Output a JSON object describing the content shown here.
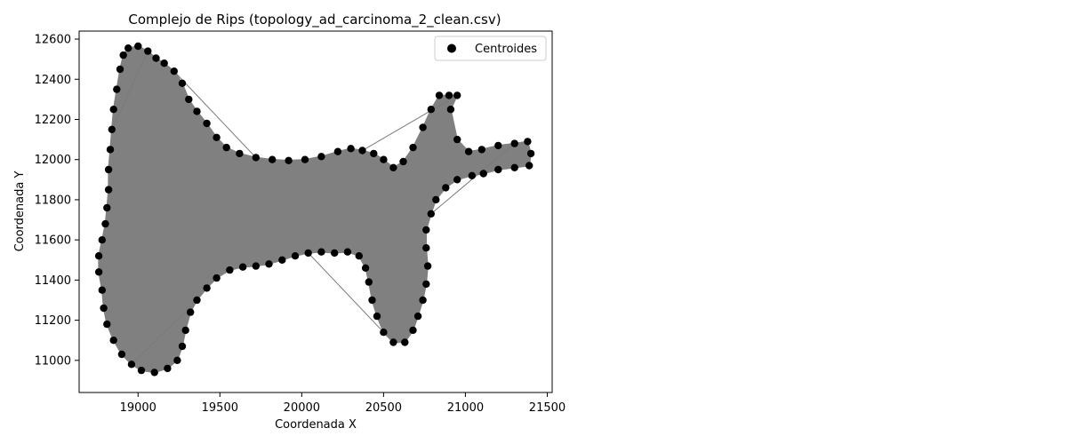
{
  "chart_data": {
    "type": "scatter",
    "title": "Complejo de Rips (topology_ad_carcinoma_2_clean.csv)",
    "xlabel": "Coordenada X",
    "ylabel": "Coordenada Y",
    "xlim": [
      18640,
      21530
    ],
    "ylim": [
      10840,
      12640
    ],
    "xticks": [
      19000,
      19500,
      20000,
      20500,
      21000,
      21500
    ],
    "yticks": [
      11000,
      11200,
      11400,
      11600,
      11800,
      12000,
      12200,
      12400,
      12600
    ],
    "grid": false,
    "legend": {
      "placement": "top-right",
      "entries": [
        "Centroides"
      ]
    },
    "colors": {
      "points": "#000000",
      "complex": "#808080"
    },
    "series": [
      {
        "name": "Centroides",
        "boundary_points": [
          [
            18940,
            12555
          ],
          [
            19000,
            12565
          ],
          [
            19060,
            12540
          ],
          [
            19110,
            12505
          ],
          [
            19160,
            12480
          ],
          [
            19220,
            12440
          ],
          [
            19270,
            12380
          ],
          [
            19310,
            12300
          ],
          [
            19360,
            12240
          ],
          [
            19420,
            12180
          ],
          [
            19480,
            12110
          ],
          [
            19540,
            12060
          ],
          [
            19620,
            12030
          ],
          [
            19720,
            12010
          ],
          [
            19820,
            12000
          ],
          [
            19920,
            11995
          ],
          [
            20020,
            12000
          ],
          [
            20120,
            12015
          ],
          [
            20220,
            12040
          ],
          [
            20300,
            12055
          ],
          [
            20370,
            12045
          ],
          [
            20440,
            12030
          ],
          [
            20500,
            12000
          ],
          [
            20560,
            11960
          ],
          [
            20620,
            11990
          ],
          [
            20680,
            12060
          ],
          [
            20740,
            12160
          ],
          [
            20790,
            12250
          ],
          [
            20840,
            12320
          ],
          [
            20900,
            12320
          ],
          [
            20950,
            12320
          ],
          [
            20910,
            12250
          ],
          [
            20950,
            12100
          ],
          [
            21020,
            12040
          ],
          [
            21100,
            12050
          ],
          [
            21200,
            12070
          ],
          [
            21300,
            12080
          ],
          [
            21380,
            12090
          ],
          [
            21400,
            12030
          ],
          [
            21390,
            11970
          ],
          [
            21300,
            11960
          ],
          [
            21200,
            11950
          ],
          [
            21110,
            11930
          ],
          [
            21040,
            11920
          ],
          [
            20950,
            11900
          ],
          [
            20880,
            11860
          ],
          [
            20820,
            11800
          ],
          [
            20790,
            11730
          ],
          [
            20760,
            11650
          ],
          [
            20760,
            11560
          ],
          [
            20770,
            11470
          ],
          [
            20760,
            11380
          ],
          [
            20740,
            11300
          ],
          [
            20710,
            11220
          ],
          [
            20680,
            11150
          ],
          [
            20630,
            11090
          ],
          [
            20560,
            11090
          ],
          [
            20500,
            11140
          ],
          [
            20460,
            11220
          ],
          [
            20430,
            11300
          ],
          [
            20410,
            11390
          ],
          [
            20390,
            11460
          ],
          [
            20350,
            11520
          ],
          [
            20280,
            11540
          ],
          [
            20200,
            11535
          ],
          [
            20120,
            11540
          ],
          [
            20040,
            11535
          ],
          [
            19960,
            11520
          ],
          [
            19880,
            11500
          ],
          [
            19800,
            11480
          ],
          [
            19720,
            11470
          ],
          [
            19640,
            11465
          ],
          [
            19560,
            11450
          ],
          [
            19480,
            11410
          ],
          [
            19420,
            11360
          ],
          [
            19360,
            11300
          ],
          [
            19320,
            11240
          ],
          [
            19290,
            11150
          ],
          [
            19270,
            11070
          ],
          [
            19240,
            11000
          ],
          [
            19180,
            10960
          ],
          [
            19100,
            10940
          ],
          [
            19020,
            10950
          ],
          [
            18960,
            10980
          ],
          [
            18900,
            11030
          ],
          [
            18850,
            11100
          ],
          [
            18810,
            11180
          ],
          [
            18790,
            11260
          ],
          [
            18780,
            11350
          ],
          [
            18760,
            11440
          ],
          [
            18760,
            11520
          ],
          [
            18780,
            11600
          ],
          [
            18800,
            11680
          ],
          [
            18810,
            11760
          ],
          [
            18820,
            11850
          ],
          [
            18820,
            11950
          ],
          [
            18830,
            12050
          ],
          [
            18840,
            12150
          ],
          [
            18850,
            12250
          ],
          [
            18870,
            12350
          ],
          [
            18890,
            12450
          ],
          [
            18910,
            12520
          ]
        ]
      }
    ]
  }
}
